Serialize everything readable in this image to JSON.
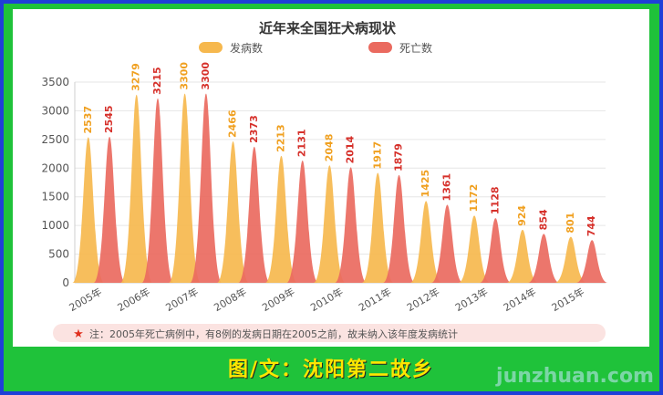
{
  "caption": "图/文：沈阳第二故乡",
  "watermark": "junzhuan.com",
  "colors": {
    "morbidity": "#f6b84e",
    "death": "#ea6a5f",
    "morbidity_label": "#f0a020",
    "death_label": "#d6302a"
  },
  "chart_data": {
    "type": "bar",
    "title": "近年来全国狂犬病现状",
    "categories": [
      "2005年",
      "2006年",
      "2007年",
      "2008年",
      "2009年",
      "2010年",
      "2011年",
      "2012年",
      "2013年",
      "2014年",
      "2015年"
    ],
    "series": [
      {
        "name": "发病数",
        "values": [
          2537,
          3279,
          3300,
          2466,
          2213,
          2048,
          1917,
          1425,
          1172,
          924,
          801
        ]
      },
      {
        "name": "死亡数",
        "values": [
          2545,
          3215,
          3300,
          2373,
          2131,
          2014,
          1879,
          1361,
          1128,
          854,
          744
        ]
      }
    ],
    "ylim": [
      0,
      3500
    ],
    "yticks": [
      0,
      500,
      1000,
      1500,
      2000,
      2500,
      3000,
      3500
    ],
    "grid": true,
    "legend": "top",
    "note": "注：2005年死亡病例中，有8例的发病日期在2005之前，故未纳入该年度发病统计"
  }
}
